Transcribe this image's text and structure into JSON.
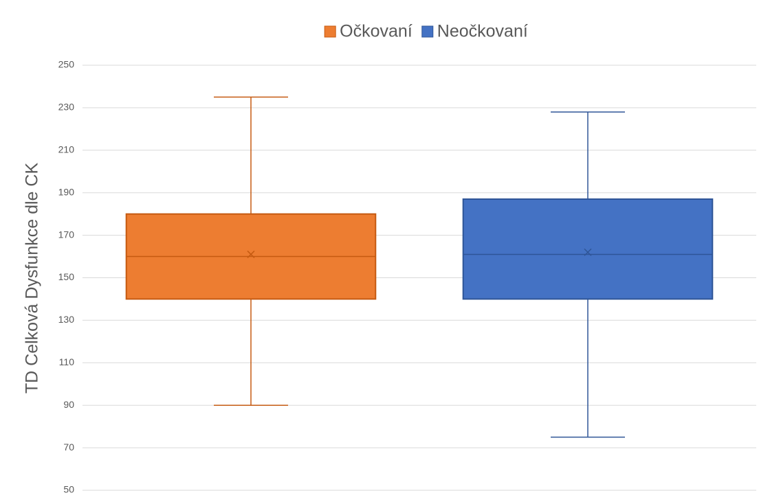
{
  "chart_data": {
    "type": "box",
    "y_label": "TD Celková Dysfunkce dle CK",
    "series": [
      {
        "name": "Očkovaní",
        "color": "#ed7d31",
        "edge": "#c55a11",
        "min": 90,
        "q1": 140,
        "median": 160,
        "q3": 180,
        "max": 235,
        "mean": 161
      },
      {
        "name": "Neočkovaní",
        "color": "#4472c4",
        "edge": "#2f5597",
        "min": 75,
        "q1": 140,
        "median": 161,
        "q3": 187,
        "max": 228,
        "mean": 162
      }
    ],
    "ylim": [
      50,
      250
    ],
    "yticks": [
      50,
      70,
      90,
      110,
      130,
      150,
      170,
      190,
      210,
      230,
      250
    ],
    "grid": true,
    "legend": "top"
  }
}
